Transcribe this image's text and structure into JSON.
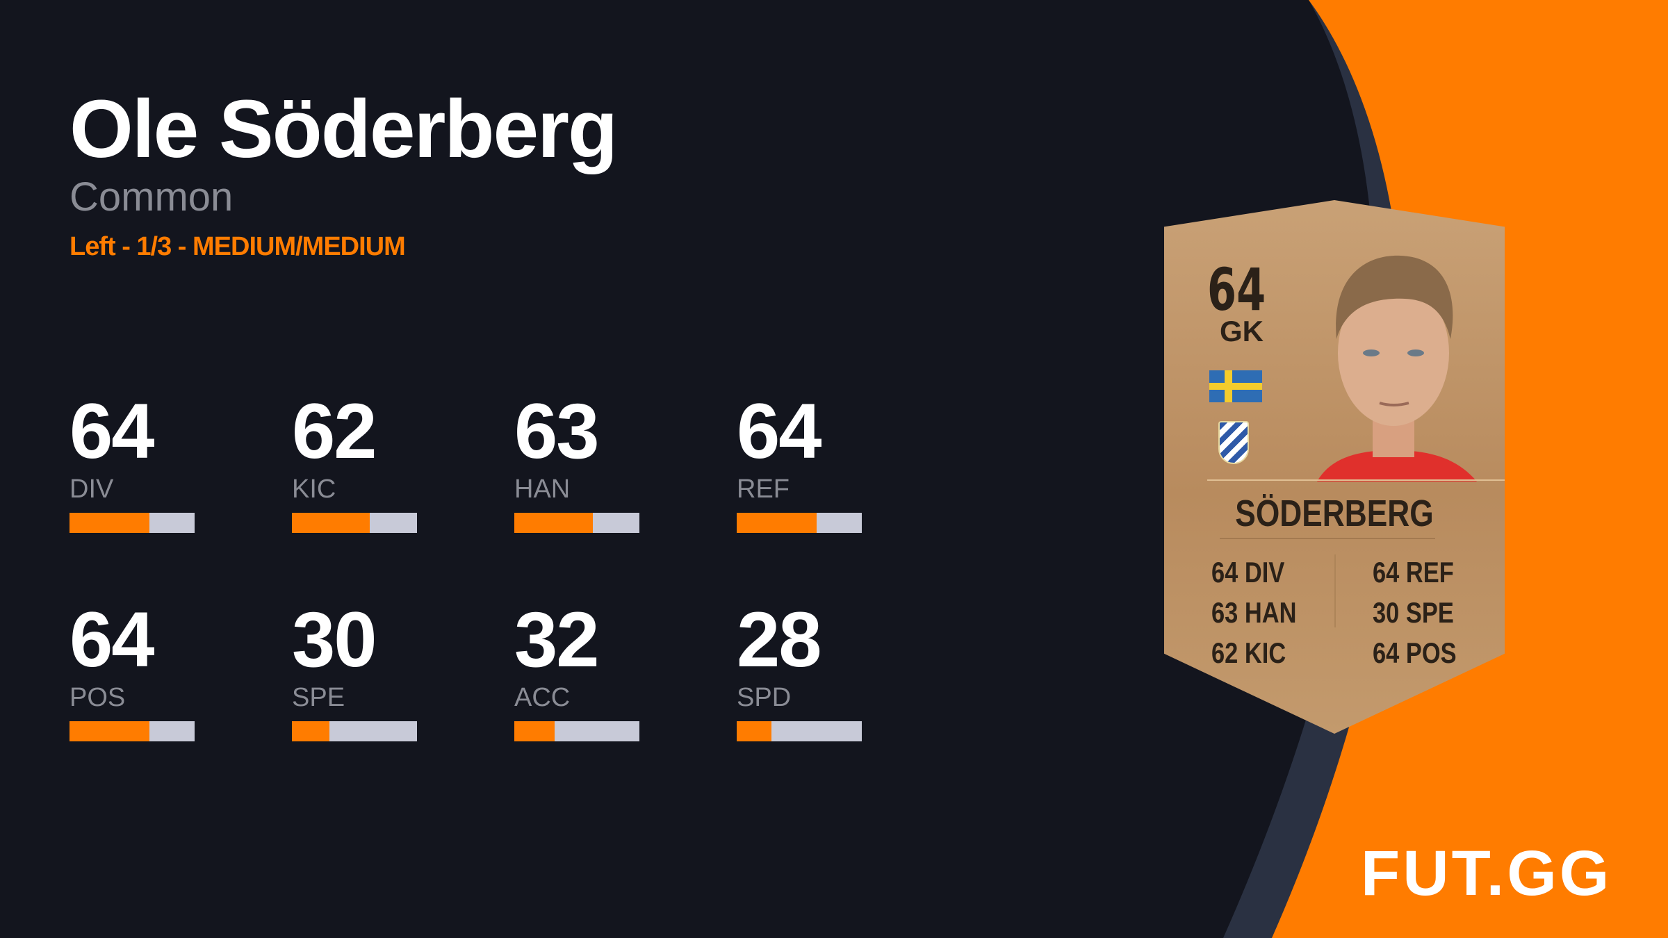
{
  "player": {
    "name": "Ole Söderberg",
    "rarity": "Common",
    "details": "Left - 1/3 - MEDIUM/MEDIUM"
  },
  "stats": [
    {
      "value": "64",
      "label": "DIV",
      "fill": 0.64
    },
    {
      "value": "62",
      "label": "KIC",
      "fill": 0.62
    },
    {
      "value": "63",
      "label": "HAN",
      "fill": 0.63
    },
    {
      "value": "64",
      "label": "REF",
      "fill": 0.64
    },
    {
      "value": "64",
      "label": "POS",
      "fill": 0.64
    },
    {
      "value": "30",
      "label": "SPE",
      "fill": 0.3
    },
    {
      "value": "32",
      "label": "ACC",
      "fill": 0.32
    },
    {
      "value": "28",
      "label": "SPD",
      "fill": 0.28
    }
  ],
  "card": {
    "rating": "64",
    "position": "GK",
    "name": "SÖDERBERG",
    "nation_flag": "sweden-flag",
    "club": "IFK Göteborg crest",
    "left": [
      "64 DIV",
      "63 HAN",
      "62 KIC"
    ],
    "right": [
      "64 REF",
      "30 SPE",
      "64 POS"
    ]
  },
  "logo": "FUT.GG",
  "colors": {
    "accent": "#ff7c00",
    "background": "#13151e",
    "band": "#2a3142"
  }
}
